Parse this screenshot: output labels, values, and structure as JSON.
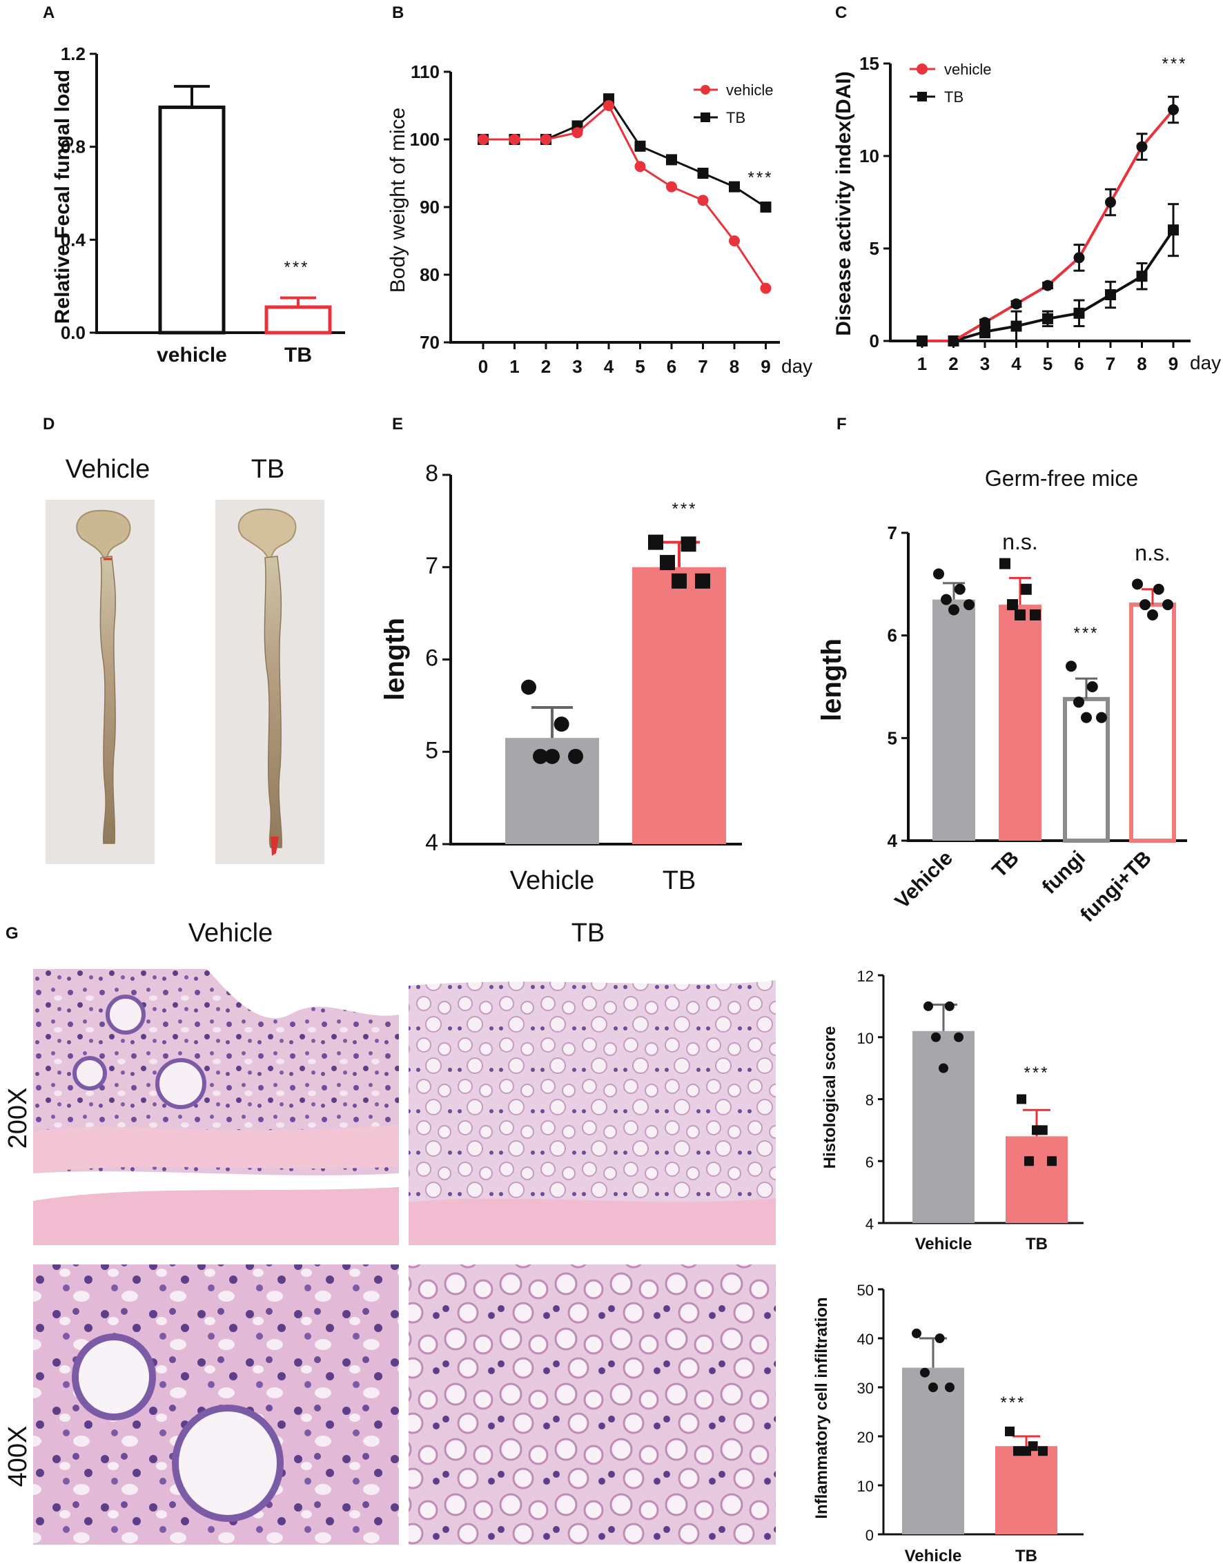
{
  "panel_letters": {
    "A": "A",
    "B": "B",
    "C": "C",
    "D": "D",
    "E": "E",
    "F": "F",
    "G": "G"
  },
  "colors": {
    "vehicle_line": "#e8323c",
    "tb_line": "#111111",
    "gray_bar": "#a6a6ab",
    "pink_bar": "#f07a7c",
    "red_outline": "#e8323c"
  },
  "photos": {
    "d_vehicle_label": "Vehicle",
    "d_tb_label": "TB",
    "g_vehicle_header": "Vehicle",
    "g_tb_header": "TB",
    "g_row1": "200X",
    "g_row2": "400X"
  },
  "chart_data": [
    {
      "id": "A",
      "type": "bar",
      "ylabel": "Relative Fecal fungal load",
      "ylim": [
        0.0,
        1.2
      ],
      "yticks": [
        "0.0",
        "0.4",
        "0.8",
        "1.2"
      ],
      "categories": [
        "vehicle",
        "TB"
      ],
      "values": [
        0.97,
        0.11
      ],
      "errors": [
        0.09,
        0.04
      ],
      "annotations": [
        "",
        "***"
      ]
    },
    {
      "id": "B",
      "type": "line",
      "ylabel": "Body weight of mice",
      "xunit": "day",
      "ylim": [
        70,
        110
      ],
      "yticks": [
        "70",
        "80",
        "90",
        "100",
        "110"
      ],
      "x": [
        "0",
        "1",
        "2",
        "3",
        "4",
        "5",
        "6",
        "7",
        "8",
        "9"
      ],
      "series": [
        {
          "name": "vehicle",
          "values": [
            100,
            100,
            100,
            101,
            105,
            96,
            93,
            91,
            85,
            78
          ]
        },
        {
          "name": "TB",
          "values": [
            100,
            100,
            100,
            102,
            106,
            99,
            97,
            95,
            93,
            90
          ]
        }
      ],
      "annotation": "***"
    },
    {
      "id": "C",
      "type": "line",
      "ylabel": "Disease activity index(DAI)",
      "xunit": "day",
      "ylim": [
        0,
        15
      ],
      "yticks": [
        "0",
        "5",
        "10",
        "15"
      ],
      "x": [
        "1",
        "2",
        "3",
        "4",
        "5",
        "6",
        "7",
        "8",
        "9"
      ],
      "series": [
        {
          "name": "vehicle",
          "values": [
            0,
            0,
            1.0,
            2.0,
            3.0,
            4.5,
            7.5,
            10.5,
            12.5
          ],
          "errors": [
            0,
            0,
            0.15,
            0.15,
            0.15,
            0.7,
            0.7,
            0.7,
            0.7
          ]
        },
        {
          "name": "TB",
          "values": [
            0,
            0,
            0.5,
            0.8,
            1.2,
            1.5,
            2.5,
            3.5,
            6.0
          ],
          "errors": [
            0,
            0,
            0.3,
            0.8,
            0.4,
            0.7,
            0.7,
            0.7,
            1.4
          ]
        }
      ],
      "annotation": "***"
    },
    {
      "id": "E",
      "type": "bar",
      "ylabel": "length",
      "ylim": [
        4,
        8
      ],
      "yticks": [
        "4",
        "5",
        "6",
        "7",
        "8"
      ],
      "categories": [
        "Vehicle",
        "TB"
      ],
      "values": [
        5.15,
        7.0
      ],
      "errors": [
        0.33,
        0.27
      ],
      "points": [
        [
          5.7,
          5.3,
          4.95,
          4.95,
          4.95
        ],
        [
          7.27,
          7.25,
          7.05,
          6.85,
          6.85
        ]
      ],
      "annotations": [
        "",
        "***"
      ]
    },
    {
      "id": "F",
      "type": "bar",
      "title": "Germ-free mice",
      "ylabel": "length",
      "ylim": [
        4,
        7
      ],
      "yticks": [
        "4",
        "5",
        "6",
        "7"
      ],
      "categories": [
        "Vehicle",
        "TB",
        "fungi",
        "fungi+TB"
      ],
      "values": [
        6.35,
        6.3,
        5.38,
        6.3
      ],
      "errors": [
        0.16,
        0.26,
        0.2,
        0.15
      ],
      "points": [
        [
          6.6,
          6.45,
          6.35,
          6.3,
          6.25
        ],
        [
          6.7,
          6.45,
          6.3,
          6.2,
          6.2
        ],
        [
          5.7,
          5.5,
          5.35,
          5.2,
          5.2
        ],
        [
          6.5,
          6.45,
          6.3,
          6.3,
          6.2
        ]
      ],
      "annotations": [
        "",
        "n.s.",
        "***",
        "n.s."
      ]
    },
    {
      "id": "G1",
      "type": "bar",
      "ylabel": "Histological score",
      "ylim": [
        4,
        12
      ],
      "yticks": [
        "4",
        "6",
        "8",
        "10",
        "12"
      ],
      "categories": [
        "Vehicle",
        "TB"
      ],
      "values": [
        10.2,
        6.8
      ],
      "errors": [
        0.85,
        0.85
      ],
      "points": [
        [
          11.0,
          11.0,
          10.0,
          10.0,
          9.0
        ],
        [
          8.0,
          7.0,
          6.0,
          6.0,
          7.0
        ]
      ],
      "annotations": [
        "",
        "***"
      ]
    },
    {
      "id": "G2",
      "type": "bar",
      "ylabel": "Inflammatory cell infiltration",
      "ylim": [
        0,
        50
      ],
      "yticks": [
        "0",
        "10",
        "20",
        "30",
        "40",
        "50"
      ],
      "categories": [
        "Vehicle",
        "TB"
      ],
      "values": [
        34,
        18
      ],
      "errors": [
        6,
        2
      ],
      "points": [
        [
          41,
          40,
          33,
          30,
          30
        ],
        [
          21,
          18,
          17,
          17,
          17
        ]
      ],
      "annotations": [
        "",
        "***"
      ]
    }
  ]
}
